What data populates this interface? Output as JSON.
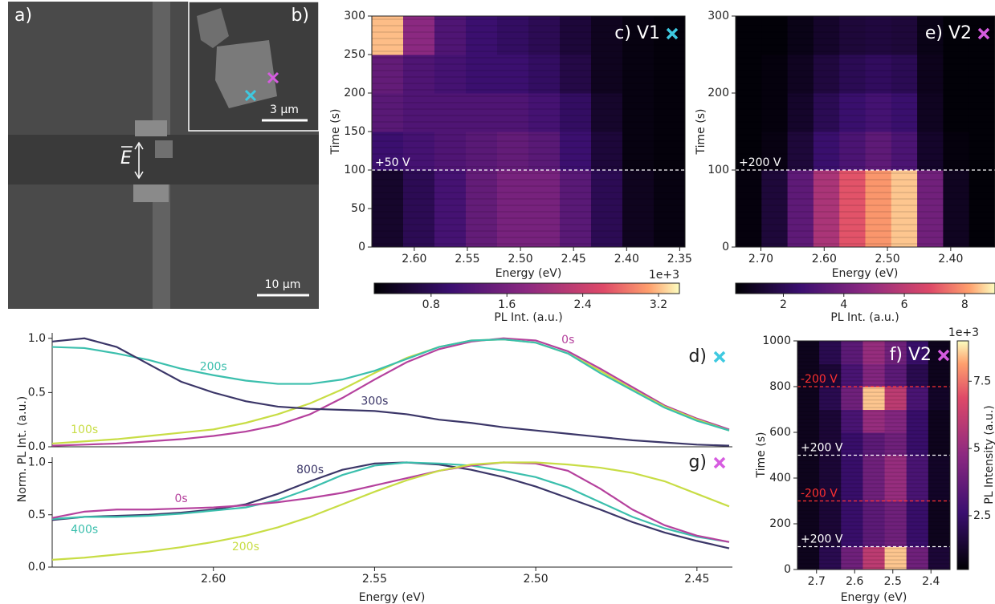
{
  "images": [
    {
      "label": "a)",
      "scale_bar": "10 µm",
      "field": "E"
    },
    {
      "label": "b)",
      "scale_bar": "3 µm"
    }
  ],
  "chart_data": [
    {
      "type": "heatmap",
      "title": "c) V1",
      "marker_color": "#3ec9e0",
      "xlabel": "Energy (eV)",
      "ylabel": "Time (s)",
      "xlim": [
        2.64,
        2.345
      ],
      "xticks": [
        {
          "value": 2.6,
          "label": "2.60"
        },
        2.55,
        {
          "value": 2.5,
          "label": "2.50"
        },
        2.45,
        {
          "value": 2.4,
          "label": "2.40"
        },
        2.35
      ],
      "ylim": [
        0,
        300
      ],
      "yticks": [
        0,
        50,
        100,
        150,
        200,
        250,
        300
      ],
      "values": [
        [
          0.5,
          0.8,
          1.1,
          1.4,
          1.6,
          1.6,
          1.3,
          0.8,
          0.4,
          0.3
        ],
        [
          0.5,
          0.8,
          1.1,
          1.4,
          1.6,
          1.6,
          1.3,
          0.8,
          0.4,
          0.3
        ],
        [
          1.0,
          1.1,
          1.2,
          1.3,
          1.4,
          1.3,
          1.0,
          0.6,
          0.3,
          0.25
        ],
        [
          1.3,
          1.2,
          1.2,
          1.2,
          1.2,
          1.1,
          0.9,
          0.5,
          0.3,
          0.25
        ],
        [
          1.4,
          1.2,
          1.1,
          1.0,
          1.0,
          0.9,
          0.7,
          0.4,
          0.3,
          0.25
        ],
        [
          3.2,
          1.8,
          1.2,
          1.0,
          0.9,
          0.8,
          0.6,
          0.4,
          0.3,
          0.25
        ]
      ],
      "colorbar": {
        "label": "PL Int. (a.u.)",
        "exponent": "1e+3",
        "lim": [
          0.2,
          3.42
        ],
        "ticks": [
          0.8,
          1.6,
          2.4,
          3.2
        ]
      },
      "annotations": [
        {
          "y": 100,
          "label": "+50 V",
          "color": "#ffffff"
        }
      ]
    },
    {
      "type": "heatmap",
      "title": "e) V2",
      "marker_color": "#d65ce0",
      "xlabel": "Energy (eV)",
      "ylabel": "Time (s)",
      "xlim": [
        2.74,
        2.33
      ],
      "xticks": [
        {
          "value": 2.7,
          "label": "2.70"
        },
        {
          "value": 2.6,
          "label": "2.60"
        },
        {
          "value": 2.5,
          "label": "2.50"
        },
        {
          "value": 2.4,
          "label": "2.40"
        }
      ],
      "ylim": [
        0,
        300
      ],
      "yticks": [
        0,
        100,
        200,
        300
      ],
      "values": [
        [
          0.6,
          1.5,
          3.5,
          5.5,
          7,
          8,
          8.5,
          4,
          1,
          0.5
        ],
        [
          0.6,
          1.5,
          3.5,
          5.5,
          7,
          8,
          8.5,
          4,
          1,
          0.5
        ],
        [
          0.5,
          0.7,
          1.5,
          2.5,
          3,
          3.5,
          3,
          1.2,
          0.6,
          0.5
        ],
        [
          0.5,
          0.6,
          1.2,
          2,
          2.5,
          2.8,
          2.5,
          1,
          0.5,
          0.5
        ],
        [
          0.5,
          0.6,
          1,
          1.6,
          2,
          2.2,
          2,
          0.9,
          0.5,
          0.5
        ],
        [
          0.5,
          0.5,
          0.8,
          1.2,
          1.5,
          1.6,
          1.5,
          0.8,
          0.5,
          0.5
        ]
      ],
      "colorbar": {
        "label": "PL Int. (a.u.)",
        "lim": [
          0.42,
          9
        ],
        "ticks": [
          2,
          4,
          6,
          8
        ]
      },
      "annotations": [
        {
          "y": 100,
          "label": "+200 V",
          "color": "#ffffff"
        }
      ]
    },
    {
      "type": "line",
      "title": "d)",
      "marker_color": "#3ec9e0",
      "x": [
        2.65,
        2.64,
        2.63,
        2.62,
        2.61,
        2.6,
        2.59,
        2.58,
        2.57,
        2.56,
        2.55,
        2.54,
        2.53,
        2.52,
        2.51,
        2.5,
        2.49,
        2.48,
        2.47,
        2.46,
        2.45,
        2.44
      ],
      "xlim": [
        2.65,
        2.439
      ],
      "ylim": [
        0,
        1.05
      ],
      "yticks": [
        {
          "value": 0,
          "label": "0.0"
        },
        0.5,
        {
          "value": 1,
          "label": "1.0"
        }
      ],
      "series": [
        {
          "name": "0s",
          "color": "#b5419d",
          "values": [
            0.01,
            0.02,
            0.03,
            0.05,
            0.07,
            0.1,
            0.14,
            0.2,
            0.3,
            0.45,
            0.62,
            0.78,
            0.9,
            0.97,
            1.0,
            0.98,
            0.88,
            0.72,
            0.55,
            0.38,
            0.26,
            0.16
          ]
        },
        {
          "name": "100s",
          "color": "#c8dd45",
          "values": [
            0.03,
            0.05,
            0.07,
            0.1,
            0.13,
            0.16,
            0.22,
            0.3,
            0.4,
            0.53,
            0.68,
            0.82,
            0.92,
            0.98,
            0.99,
            0.96,
            0.86,
            0.7,
            0.53,
            0.37,
            0.25,
            0.15
          ]
        },
        {
          "name": "200s",
          "color": "#3bbfad",
          "values": [
            0.92,
            0.91,
            0.86,
            0.8,
            0.72,
            0.66,
            0.61,
            0.58,
            0.58,
            0.62,
            0.7,
            0.81,
            0.92,
            0.98,
            0.99,
            0.96,
            0.86,
            0.68,
            0.52,
            0.36,
            0.24,
            0.15
          ]
        },
        {
          "name": "300s",
          "color": "#3b3668",
          "values": [
            0.97,
            1.0,
            0.92,
            0.76,
            0.6,
            0.5,
            0.42,
            0.37,
            0.35,
            0.34,
            0.33,
            0.3,
            0.25,
            0.22,
            0.18,
            0.15,
            0.12,
            0.09,
            0.06,
            0.04,
            0.02,
            0.01
          ]
        }
      ]
    },
    {
      "type": "line",
      "title": "g)",
      "marker_color": "#d65ce0",
      "xlabel": "Energy (eV)",
      "ylabel": "Norm. PL Int. (a.u.)",
      "x": [
        2.65,
        2.64,
        2.63,
        2.62,
        2.61,
        2.6,
        2.59,
        2.58,
        2.57,
        2.56,
        2.55,
        2.54,
        2.53,
        2.52,
        2.51,
        2.5,
        2.49,
        2.48,
        2.47,
        2.46,
        2.45,
        2.44
      ],
      "xlim": [
        2.65,
        2.439
      ],
      "ylim": [
        0,
        1.05
      ],
      "xticks": [
        {
          "value": 2.6,
          "label": "2.60"
        },
        2.55,
        {
          "value": 2.5,
          "label": "2.50"
        },
        2.45
      ],
      "yticks": [
        {
          "value": 0,
          "label": "0.0"
        },
        0.5,
        {
          "value": 1,
          "label": "1.0"
        }
      ],
      "series": [
        {
          "name": "800s",
          "color": "#3b3668",
          "values": [
            0.45,
            0.48,
            0.49,
            0.5,
            0.52,
            0.55,
            0.6,
            0.7,
            0.82,
            0.93,
            0.99,
            1.0,
            0.98,
            0.93,
            0.86,
            0.77,
            0.66,
            0.55,
            0.43,
            0.33,
            0.25,
            0.18
          ]
        },
        {
          "name": "400s",
          "color": "#3bbfad",
          "values": [
            0.46,
            0.48,
            0.48,
            0.49,
            0.51,
            0.54,
            0.57,
            0.64,
            0.75,
            0.88,
            0.97,
            1.0,
            0.99,
            0.97,
            0.92,
            0.86,
            0.76,
            0.62,
            0.48,
            0.37,
            0.29,
            0.24
          ]
        },
        {
          "name": "0s",
          "color": "#b5419d",
          "values": [
            0.47,
            0.53,
            0.55,
            0.55,
            0.56,
            0.57,
            0.59,
            0.62,
            0.66,
            0.71,
            0.78,
            0.85,
            0.92,
            0.97,
            1.0,
            0.99,
            0.92,
            0.75,
            0.55,
            0.4,
            0.3,
            0.24
          ]
        },
        {
          "name": "200s",
          "color": "#c8dd45",
          "values": [
            0.07,
            0.09,
            0.12,
            0.15,
            0.19,
            0.24,
            0.3,
            0.38,
            0.48,
            0.6,
            0.72,
            0.83,
            0.92,
            0.98,
            1.0,
            1.0,
            0.98,
            0.95,
            0.9,
            0.82,
            0.7,
            0.58
          ]
        }
      ]
    },
    {
      "type": "heatmap",
      "title": "f) V2",
      "marker_color": "#d65ce0",
      "xlabel": "Energy (eV)",
      "ylabel": "Time (s)",
      "xlim": [
        2.75,
        2.35
      ],
      "xticks": [
        2.7,
        2.6,
        2.5,
        2.4
      ],
      "ylim": [
        0,
        1000
      ],
      "yticks": [
        0,
        200,
        400,
        600,
        800,
        1000
      ],
      "values": [
        [
          1,
          2,
          4,
          6,
          8.5,
          4,
          1.5
        ],
        [
          1,
          1.5,
          2.5,
          3.5,
          4,
          2.5,
          1
        ],
        [
          1,
          1.5,
          2.5,
          3.5,
          4,
          2.5,
          1
        ],
        [
          1,
          1.5,
          2.5,
          4,
          5,
          3,
          1.2
        ],
        [
          1,
          1.5,
          2.5,
          4,
          5,
          3,
          1.2
        ],
        [
          1,
          1.5,
          2.5,
          3.5,
          4,
          2.5,
          1
        ],
        [
          1,
          1.5,
          3,
          5,
          4.5,
          2.5,
          1
        ],
        [
          1,
          2,
          4,
          8.5,
          6,
          3,
          1.2
        ],
        [
          1,
          1.5,
          3,
          4.5,
          3.5,
          2,
          1
        ],
        [
          1,
          2,
          3.5,
          5,
          4,
          2.5,
          1
        ]
      ],
      "colorbar": {
        "label": "PL Intensity (a.u.)",
        "exponent": "1e+3",
        "lim": [
          0.5,
          9
        ],
        "ticks": [
          2.5,
          5,
          7.5
        ],
        "orientation": "vertical"
      },
      "annotations": [
        {
          "y": 800,
          "label": "-200 V",
          "color": "#ff3030"
        },
        {
          "y": 500,
          "label": "+200 V",
          "color": "#ffffff"
        },
        {
          "y": 300,
          "label": "-200 V",
          "color": "#ff3030"
        },
        {
          "y": 100,
          "label": "+200 V",
          "color": "#ffffff"
        }
      ]
    }
  ]
}
